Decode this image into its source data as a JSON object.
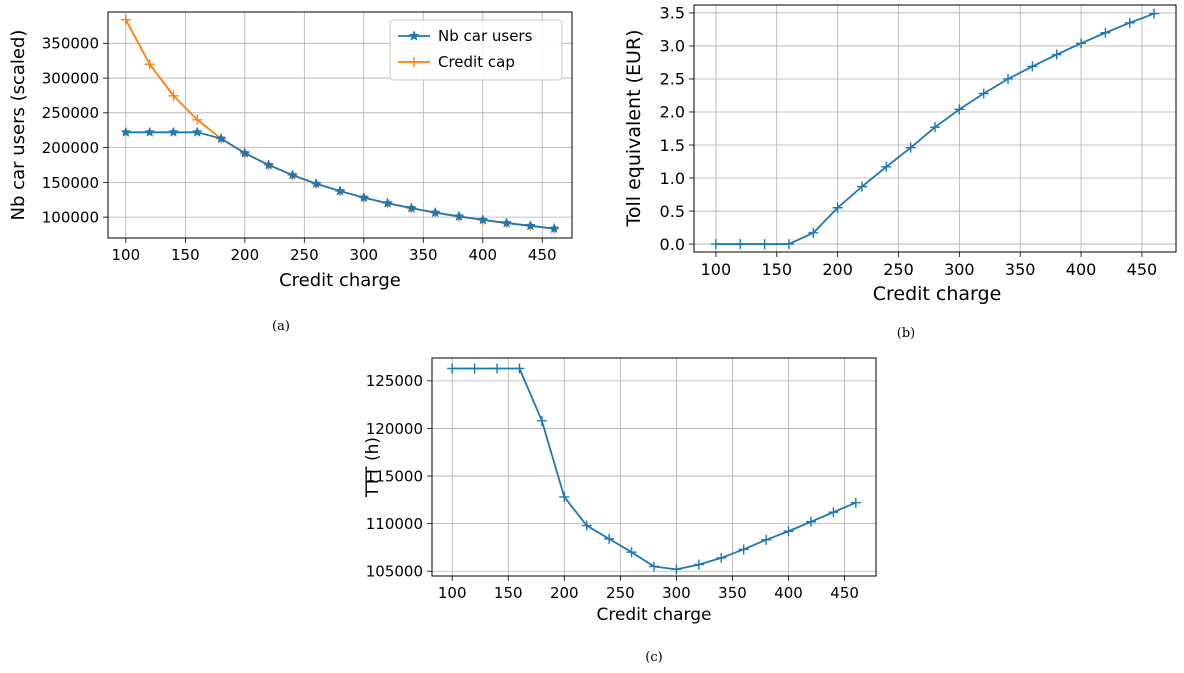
{
  "chart_data": [
    {
      "type": "line",
      "caption": "(a)",
      "xlabel": "Credit charge",
      "ylabel": "Nb car users (scaled)",
      "xlim": [
        85,
        475
      ],
      "ylim": [
        70000,
        395000
      ],
      "xticks": [
        100,
        150,
        200,
        250,
        300,
        350,
        400,
        450
      ],
      "yticks": [
        100000,
        150000,
        200000,
        250000,
        300000,
        350000
      ],
      "grid": true,
      "legend": "top-right",
      "x": [
        100,
        120,
        140,
        160,
        180,
        200,
        220,
        240,
        260,
        280,
        300,
        320,
        340,
        360,
        380,
        400,
        420,
        440,
        460
      ],
      "series": [
        {
          "name": "Nb car users",
          "color": "#1f77b4",
          "marker": "star",
          "values": [
            222000,
            222000,
            222000,
            222000,
            213000,
            192000,
            175000,
            160500,
            148000,
            137500,
            128000,
            120000,
            113000,
            106500,
            101000,
            96000,
            91500,
            87500,
            83500
          ]
        },
        {
          "name": "Credit cap",
          "color": "#ff7f0e",
          "marker": "plus",
          "values": [
            384000,
            320000,
            274500,
            240000,
            213000,
            192000,
            175000,
            160500,
            148000,
            137500,
            128000,
            120000,
            113000,
            106500,
            101000,
            96000,
            91500,
            87500,
            83500
          ]
        }
      ]
    },
    {
      "type": "line",
      "caption": "(b)",
      "xlabel": "Credit charge",
      "ylabel": "Toll equivalent (EUR)",
      "xlim": [
        82,
        478
      ],
      "ylim": [
        -0.12,
        3.62
      ],
      "xticks": [
        100,
        150,
        200,
        250,
        300,
        350,
        400,
        450
      ],
      "yticks": [
        0.0,
        0.5,
        1.0,
        1.5,
        2.0,
        2.5,
        3.0,
        3.5
      ],
      "ytick_labels": [
        "0.0",
        "0.5",
        "1.0",
        "1.5",
        "2.0",
        "2.5",
        "3.0",
        "3.5"
      ],
      "grid": true,
      "x": [
        100,
        120,
        140,
        160,
        180,
        200,
        220,
        240,
        260,
        280,
        300,
        320,
        340,
        360,
        380,
        400,
        420,
        440,
        460
      ],
      "series": [
        {
          "color": "#1f77b4",
          "marker": "plus",
          "values": [
            0.0,
            0.0,
            0.0,
            0.0,
            0.17,
            0.55,
            0.87,
            1.17,
            1.46,
            1.77,
            2.04,
            2.28,
            2.5,
            2.69,
            2.87,
            3.04,
            3.2,
            3.35,
            3.49
          ]
        }
      ]
    },
    {
      "type": "line",
      "caption": "(c)",
      "xlabel": "Credit charge",
      "ylabel": "TTT (h)",
      "xlim": [
        82,
        478
      ],
      "ylim": [
        104500,
        127400
      ],
      "xticks": [
        100,
        150,
        200,
        250,
        300,
        350,
        400,
        450
      ],
      "yticks": [
        105000,
        110000,
        115000,
        120000,
        125000
      ],
      "grid": true,
      "x": [
        100,
        120,
        140,
        160,
        180,
        200,
        220,
        240,
        260,
        280,
        300,
        320,
        340,
        360,
        380,
        400,
        420,
        440,
        460
      ],
      "series": [
        {
          "color": "#1f77b4",
          "marker": "plus",
          "values": [
            126300,
            126300,
            126300,
            126300,
            120800,
            112800,
            109800,
            108400,
            107000,
            105500,
            105200,
            105700,
            106400,
            107300,
            108300,
            109200,
            110200,
            111200,
            112200
          ]
        }
      ]
    }
  ]
}
